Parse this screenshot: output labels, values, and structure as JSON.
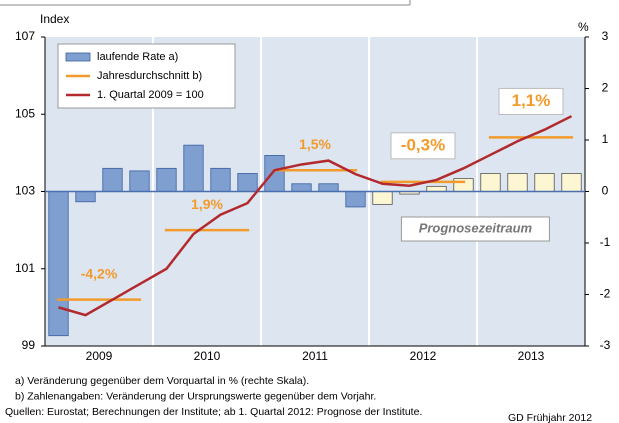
{
  "chart_data": {
    "type": "combo",
    "ylabel": "Index",
    "y2label": "%",
    "ylim": [
      99,
      107
    ],
    "yticks": [
      99,
      101,
      103,
      105,
      107
    ],
    "y2lim": [
      -3,
      3
    ],
    "y2ticks": [
      -3,
      -2,
      -1,
      0,
      1,
      2,
      3
    ],
    "years": [
      "2009",
      "2010",
      "2011",
      "2012",
      "2013"
    ],
    "forecast_start_year": "2012",
    "forecast_label": "Prognosezeitraum",
    "series": [
      {
        "name": "laufende Rate a)",
        "type": "bar",
        "axis": "y2",
        "color": "#7f9fd0",
        "forecast_color": "#fdf6d3",
        "values": [
          -2.8,
          -0.2,
          0.45,
          0.4,
          0.45,
          0.9,
          0.45,
          0.35,
          0.7,
          0.15,
          0.15,
          -0.3,
          -0.25,
          -0.05,
          0.1,
          0.25,
          0.35,
          0.35,
          0.35,
          0.35
        ]
      },
      {
        "name": "Jahresdurchschnitt b)",
        "type": "segments",
        "color": "#f39a2c",
        "values": [
          100.2,
          102.0,
          103.55,
          103.25,
          104.4
        ],
        "growth_labels": [
          "-4,2%",
          "1,9%",
          "1,5%",
          "-0,3%",
          "1,1%"
        ]
      },
      {
        "name": "1. Quartal 2009 = 100",
        "type": "line",
        "color": "#b22a2e",
        "values": [
          100.0,
          99.8,
          100.2,
          100.6,
          101.0,
          101.9,
          102.4,
          102.7,
          103.55,
          103.7,
          103.8,
          103.45,
          103.2,
          103.15,
          103.3,
          103.6,
          103.95,
          104.3,
          104.6,
          104.95
        ]
      }
    ],
    "footnotes": [
      "a) Veränderung gegenüber dem Vorquartal in % (rechte Skala).",
      "b) Zahlenangaben: Veränderung der Ursprungswerte gegenüber dem Vorjahr.",
      "Quellen: Eurostat; Berechnungen der Institute; ab 1. Quartal 2012: Prognose der Institute."
    ],
    "source_note": "GD Frühjahr 2012"
  }
}
